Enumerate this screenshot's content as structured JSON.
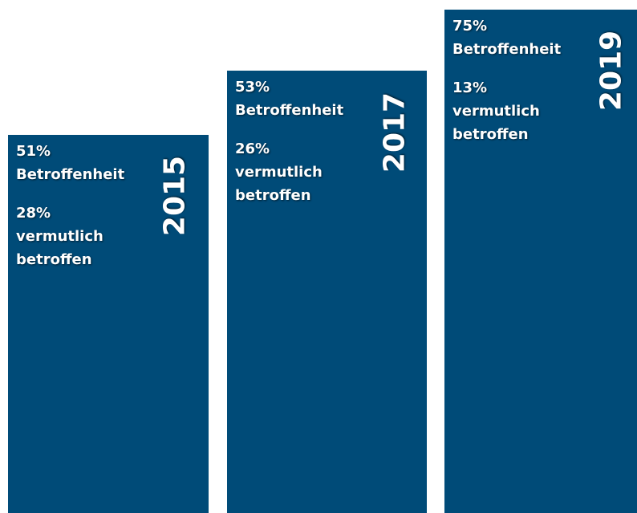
{
  "panels": [
    {
      "year": "2015",
      "share": "51%",
      "share_label": "Betroffenheit",
      "suspected": "28%",
      "suspected_label": "vermutlich betroffen"
    },
    {
      "year": "2017",
      "share": "53%",
      "share_label": "Betroffenheit",
      "suspected": "26%",
      "suspected_label": "vermutlich betroffen"
    },
    {
      "year": "2019",
      "share": "75%",
      "share_label": "Betroffenheit",
      "suspected": "13%",
      "suspected_label": "vermutlich betroffen"
    }
  ]
}
